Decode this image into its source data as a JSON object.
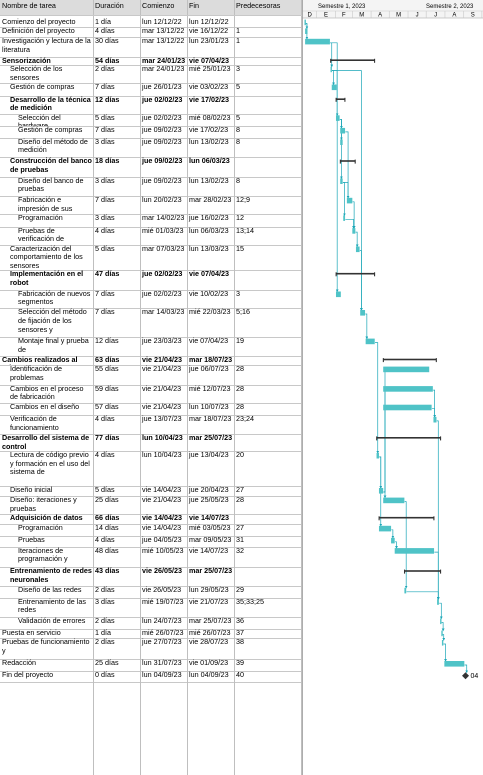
{
  "columns": {
    "name": "Nombre de tarea",
    "duration": "Duración",
    "start": "Comienzo",
    "end": "Fin",
    "pred": "Predecesoras"
  },
  "timeline": {
    "semesters": [
      "Semestre 1, 2023",
      "Semestre 2, 2023"
    ],
    "months": [
      "D",
      "E",
      "F",
      "M",
      "A",
      "M",
      "J",
      "J",
      "A",
      "S"
    ],
    "colors": {
      "bar": "#4fc3c7",
      "summary": "#333333",
      "link": "#1aa6b7",
      "grid": "#c8c8c8"
    }
  },
  "tasks": [
    {
      "name": "Comienzo del proyecto",
      "dur": "1 día",
      "start": "lun 12/12/22",
      "end": "lun 12/12/22",
      "pred": "",
      "level": 0,
      "summary": false,
      "s": 0,
      "e": 1
    },
    {
      "name": "Definición del proyecto",
      "dur": "4 días",
      "start": "mar 13/12/22",
      "end": "vie 16/12/22",
      "pred": "1",
      "level": 0,
      "summary": false,
      "s": 1,
      "e": 5
    },
    {
      "name": "Investigación y lectura de la literatura",
      "dur": "30 días",
      "start": "mar 13/12/22",
      "end": "lun 23/01/23",
      "pred": "1",
      "level": 0,
      "summary": false,
      "s": 1,
      "e": 42
    },
    {
      "name": "Sensorización",
      "dur": "54 días",
      "start": "mar 24/01/23",
      "end": "vie 07/04/23",
      "pred": "",
      "level": 0,
      "summary": true,
      "s": 43,
      "e": 116
    },
    {
      "name": "Selección de los sensores",
      "dur": "2 días",
      "start": "mar 24/01/23",
      "end": "mié 25/01/23",
      "pred": "3",
      "level": 1,
      "summary": false,
      "s": 43,
      "e": 45
    },
    {
      "name": "Gestión de compras",
      "dur": "7 días",
      "start": "jue 26/01/23",
      "end": "vie 03/02/23",
      "pred": "5",
      "level": 1,
      "summary": false,
      "s": 45,
      "e": 53
    },
    {
      "name": "Desarrollo de la técnica de medición",
      "dur": "12 días",
      "start": "jue 02/02/23",
      "end": "vie 17/02/23",
      "pred": "",
      "level": 1,
      "summary": true,
      "s": 52,
      "e": 67
    },
    {
      "name": "Selección del hardware",
      "dur": "5 días",
      "start": "jue 02/02/23",
      "end": "mié 08/02/23",
      "pred": "5",
      "level": 2,
      "summary": false,
      "s": 52,
      "e": 58
    },
    {
      "name": "Gestión de compras",
      "dur": "7 días",
      "start": "jue 09/02/23",
      "end": "vie 17/02/23",
      "pred": "8",
      "level": 2,
      "summary": false,
      "s": 59,
      "e": 67
    },
    {
      "name": "Diseño del método de medición",
      "dur": "3 días",
      "start": "jue 09/02/23",
      "end": "lun 13/02/23",
      "pred": "8",
      "level": 2,
      "summary": false,
      "s": 59,
      "e": 63
    },
    {
      "name": "Construcción del banco de pruebas",
      "dur": "18 días",
      "start": "jue 09/02/23",
      "end": "lun 06/03/23",
      "pred": "",
      "level": 1,
      "summary": true,
      "s": 59,
      "e": 84
    },
    {
      "name": "Diseño del banco de pruebas",
      "dur": "3 días",
      "start": "jue 09/02/23",
      "end": "lun 13/02/23",
      "pred": "8",
      "level": 2,
      "summary": false,
      "s": 59,
      "e": 63
    },
    {
      "name": "Fabricación e impresión de sus",
      "dur": "7 días",
      "start": "lun 20/02/23",
      "end": "mar 28/02/23",
      "pred": "12;9",
      "level": 2,
      "summary": false,
      "s": 70,
      "e": 79
    },
    {
      "name": "Programación",
      "dur": "3 días",
      "start": "mar 14/02/23",
      "end": "jue 16/02/23",
      "pred": "12",
      "level": 2,
      "summary": false,
      "s": 64,
      "e": 67
    },
    {
      "name": "Pruebas de verificación de",
      "dur": "4 días",
      "start": "mié 01/03/23",
      "end": "lun 06/03/23",
      "pred": "13;14",
      "level": 2,
      "summary": false,
      "s": 79,
      "e": 84
    },
    {
      "name": "Caracterización del comportamiento de los sensores",
      "dur": "5 días",
      "start": "mar 07/03/23",
      "end": "lun 13/03/23",
      "pred": "15",
      "level": 1,
      "summary": false,
      "s": 85,
      "e": 91
    },
    {
      "name": "Implementación en el robot",
      "dur": "47 días",
      "start": "jue 02/02/23",
      "end": "vie 07/04/23",
      "pred": "",
      "level": 1,
      "summary": true,
      "s": 52,
      "e": 116
    },
    {
      "name": "Fabricación de nuevos segmentos",
      "dur": "7 días",
      "start": "jue 02/02/23",
      "end": "vie 10/02/23",
      "pred": "3",
      "level": 2,
      "summary": false,
      "s": 52,
      "e": 60
    },
    {
      "name": "Selección del método de fijación de los sensores y",
      "dur": "7 días",
      "start": "mar 14/03/23",
      "end": "mié 22/03/23",
      "pred": "5;16",
      "level": 2,
      "summary": false,
      "s": 92,
      "e": 100
    },
    {
      "name": "Montaje final y prueba de",
      "dur": "12 días",
      "start": "jue 23/03/23",
      "end": "vie 07/04/23",
      "pred": "19",
      "level": 2,
      "summary": false,
      "s": 101,
      "e": 116
    },
    {
      "name": "Cambios realizados al robot",
      "dur": "63 días",
      "start": "vie 21/04/23",
      "end": "mar 18/07/23",
      "pred": "",
      "level": 0,
      "summary": true,
      "s": 130,
      "e": 218
    },
    {
      "name": "Identificación de problemas",
      "dur": "55 días",
      "start": "vie 21/04/23",
      "end": "jue 06/07/23",
      "pred": "28",
      "level": 1,
      "summary": false,
      "s": 130,
      "e": 206
    },
    {
      "name": "Cambios en el proceso de fabricación",
      "dur": "59 días",
      "start": "vie 21/04/23",
      "end": "mié 12/07/23",
      "pred": "28",
      "level": 1,
      "summary": false,
      "s": 130,
      "e": 212
    },
    {
      "name": "Cambios en el diseño",
      "dur": "57 días",
      "start": "vie 21/04/23",
      "end": "lun 10/07/23",
      "pred": "28",
      "level": 1,
      "summary": false,
      "s": 130,
      "e": 210
    },
    {
      "name": "Verificación de funcionamiento",
      "dur": "4 días",
      "start": "jue 13/07/23",
      "end": "mar 18/07/23",
      "pred": "23;24",
      "level": 1,
      "summary": false,
      "s": 213,
      "e": 218
    },
    {
      "name": "Desarrollo del sistema de control",
      "dur": "77 días",
      "start": "lun 10/04/23",
      "end": "mar 25/07/23",
      "pred": "",
      "level": 0,
      "summary": true,
      "s": 119,
      "e": 225
    },
    {
      "name": "Lectura de código previo y formación en el uso del sistema de",
      "dur": "4 días",
      "start": "lun 10/04/23",
      "end": "jue 13/04/23",
      "pred": "20",
      "level": 1,
      "summary": false,
      "s": 119,
      "e": 123
    },
    {
      "name": "Diseño inicial",
      "dur": "5 días",
      "start": "vie 14/04/23",
      "end": "jue 20/04/23",
      "pred": "27",
      "level": 1,
      "summary": false,
      "s": 123,
      "e": 130
    },
    {
      "name": "Diseño: iteraciones y pruebas",
      "dur": "25 días",
      "start": "vie 21/04/23",
      "end": "jue 25/05/23",
      "pred": "28",
      "level": 1,
      "summary": false,
      "s": 130,
      "e": 165
    },
    {
      "name": "Adquisición de datos",
      "dur": "66 días",
      "start": "vie 14/04/23",
      "end": "vie 14/07/23",
      "pred": "",
      "level": 1,
      "summary": true,
      "s": 123,
      "e": 214
    },
    {
      "name": "Programación",
      "dur": "14 días",
      "start": "vie 14/04/23",
      "end": "mié 03/05/23",
      "pred": "27",
      "level": 2,
      "summary": false,
      "s": 123,
      "e": 143
    },
    {
      "name": "Pruebas",
      "dur": "4 días",
      "start": "jue 04/05/23",
      "end": "mar 09/05/23",
      "pred": "31",
      "level": 2,
      "summary": false,
      "s": 143,
      "e": 149
    },
    {
      "name": "Iteraciones de programación y",
      "dur": "48 días",
      "start": "mié 10/05/23",
      "end": "vie 14/07/23",
      "pred": "32",
      "level": 2,
      "summary": false,
      "s": 149,
      "e": 214
    },
    {
      "name": "Entrenamiento de redes neuronales",
      "dur": "43 días",
      "start": "vie 26/05/23",
      "end": "mar 25/07/23",
      "pred": "",
      "level": 1,
      "summary": true,
      "s": 165,
      "e": 225
    },
    {
      "name": "Diseño de las redes",
      "dur": "2 días",
      "start": "vie 26/05/23",
      "end": "lun 29/05/23",
      "pred": "29",
      "level": 2,
      "summary": false,
      "s": 165,
      "e": 168
    },
    {
      "name": "Entrenamiento de las redes",
      "dur": "3 días",
      "start": "mié 19/07/23",
      "end": "vie 21/07/23",
      "pred": "35;33;25",
      "level": 2,
      "summary": false,
      "s": 219,
      "e": 222
    },
    {
      "name": "Validación de errores",
      "dur": "2 días",
      "start": "lun 24/07/23",
      "end": "mar 25/07/23",
      "pred": "36",
      "level": 2,
      "summary": false,
      "s": 224,
      "e": 226
    },
    {
      "name": "Puesta en servicio",
      "dur": "1 día",
      "start": "mié 26/07/23",
      "end": "mié 26/07/23",
      "pred": "37",
      "level": 0,
      "summary": false,
      "s": 226,
      "e": 227
    },
    {
      "name": "Pruebas de funcionamiento y",
      "dur": "2 días",
      "start": "jue 27/07/23",
      "end": "vie 28/07/23",
      "pred": "38",
      "level": 0,
      "summary": false,
      "s": 227,
      "e": 229
    },
    {
      "name": "Redacción",
      "dur": "25 días",
      "start": "lun 31/07/23",
      "end": "vie 01/09/23",
      "pred": "39",
      "level": 0,
      "summary": false,
      "s": 231,
      "e": 264
    },
    {
      "name": "Fin del proyecto",
      "dur": "0 días",
      "start": "lun 04/09/23",
      "end": "lun 04/09/23",
      "pred": "40",
      "level": 0,
      "summary": false,
      "s": 266,
      "e": 266,
      "milestone": true,
      "milestone_label": "04"
    }
  ]
}
